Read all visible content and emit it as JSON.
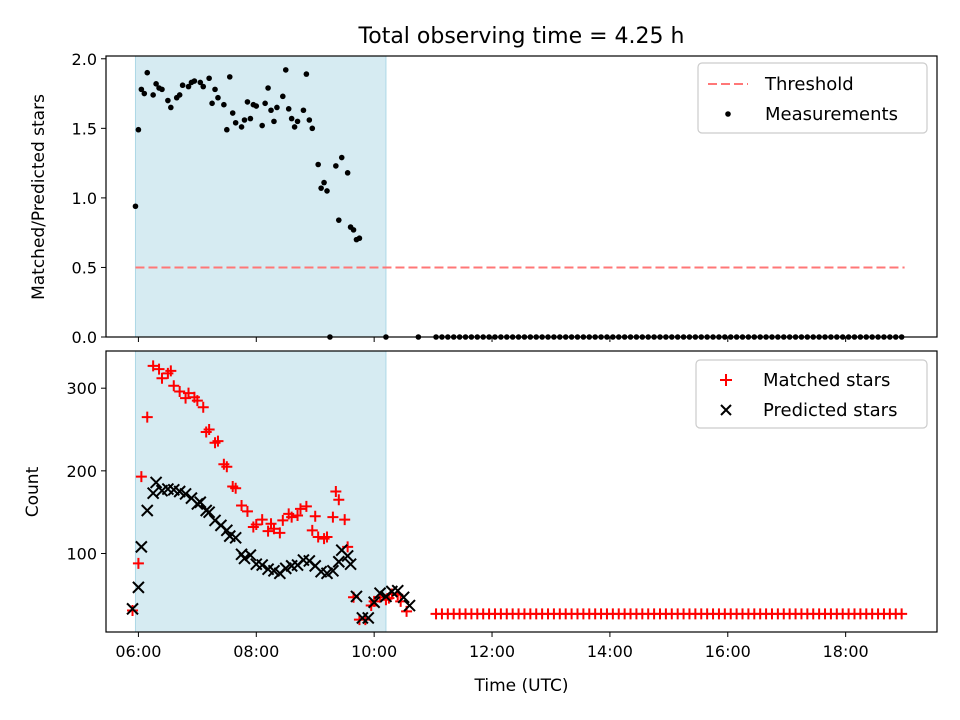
{
  "title": "Total observing time = 4.25 h",
  "chart_data": [
    {
      "type": "scatter",
      "ylabel": "Matched/Predicted stars",
      "ylim": [
        0,
        2.02
      ],
      "yticks": [
        0.0,
        0.5,
        1.0,
        1.5,
        2.0
      ],
      "ytick_labels": [
        "0.0",
        "0.5",
        "1.0",
        "1.5",
        "2.0"
      ],
      "xlim": [
        "05:27",
        "19:33"
      ],
      "legend_position": "top-right",
      "observing_window": [
        "05:57",
        "10:12"
      ],
      "colors": {
        "threshold": "#ff7777",
        "measurements": "#000000",
        "window": "#add8e6"
      },
      "threshold": {
        "name": "Threshold",
        "y": 0.5,
        "x_range": [
          "05:57",
          "19:00"
        ]
      },
      "series": [
        {
          "name": "Measurements",
          "points": [
            [
              "05:57",
              0.94
            ],
            [
              "06:00",
              1.49
            ],
            [
              "06:03",
              1.78
            ],
            [
              "06:06",
              1.75
            ],
            [
              "06:09",
              1.9
            ],
            [
              "06:15",
              1.74
            ],
            [
              "06:18",
              1.82
            ],
            [
              "06:21",
              1.79
            ],
            [
              "06:24",
              1.78
            ],
            [
              "06:30",
              1.7
            ],
            [
              "06:33",
              1.65
            ],
            [
              "06:39",
              1.72
            ],
            [
              "06:42",
              1.74
            ],
            [
              "06:45",
              1.81
            ],
            [
              "06:51",
              1.8
            ],
            [
              "06:54",
              1.83
            ],
            [
              "06:57",
              1.84
            ],
            [
              "07:03",
              1.83
            ],
            [
              "07:06",
              1.8
            ],
            [
              "07:12",
              1.86
            ],
            [
              "07:15",
              1.68
            ],
            [
              "07:18",
              1.78
            ],
            [
              "07:21",
              1.72
            ],
            [
              "07:27",
              1.67
            ],
            [
              "07:30",
              1.49
            ],
            [
              "07:33",
              1.87
            ],
            [
              "07:36",
              1.61
            ],
            [
              "07:39",
              1.54
            ],
            [
              "07:45",
              1.51
            ],
            [
              "07:48",
              1.56
            ],
            [
              "07:51",
              1.69
            ],
            [
              "07:54",
              1.57
            ],
            [
              "07:57",
              1.67
            ],
            [
              "08:00",
              1.66
            ],
            [
              "08:06",
              1.52
            ],
            [
              "08:09",
              1.68
            ],
            [
              "08:12",
              1.79
            ],
            [
              "08:15",
              1.63
            ],
            [
              "08:18",
              1.55
            ],
            [
              "08:21",
              1.65
            ],
            [
              "08:27",
              1.73
            ],
            [
              "08:30",
              1.92
            ],
            [
              "08:33",
              1.64
            ],
            [
              "08:36",
              1.57
            ],
            [
              "08:39",
              1.51
            ],
            [
              "08:42",
              1.55
            ],
            [
              "08:48",
              1.63
            ],
            [
              "08:51",
              1.89
            ],
            [
              "08:54",
              1.56
            ],
            [
              "08:57",
              1.5
            ],
            [
              "09:03",
              1.24
            ],
            [
              "09:06",
              1.07
            ],
            [
              "09:09",
              1.11
            ],
            [
              "09:12",
              1.05
            ],
            [
              "09:15",
              0.0
            ],
            [
              "09:21",
              1.23
            ],
            [
              "09:24",
              0.84
            ],
            [
              "09:27",
              1.29
            ],
            [
              "09:33",
              1.18
            ],
            [
              "09:36",
              0.79
            ],
            [
              "09:39",
              0.77
            ],
            [
              "09:42",
              0.7
            ],
            [
              "09:45",
              0.71
            ],
            [
              "10:12",
              0.0
            ],
            [
              "10:45",
              0.0
            ]
          ]
        }
      ]
    },
    {
      "type": "scatter",
      "xlabel": "Time (UTC)",
      "ylabel": "Count",
      "ylim": [
        5,
        345
      ],
      "yticks": [
        100,
        200,
        300
      ],
      "ytick_labels": [
        "100",
        "200",
        "300"
      ],
      "xlim": [
        "05:27",
        "19:33"
      ],
      "xticks": [
        "06:00",
        "08:00",
        "10:00",
        "12:00",
        "14:00",
        "16:00",
        "18:00"
      ],
      "xtick_labels": [
        "06:00",
        "08:00",
        "10:00",
        "12:00",
        "14:00",
        "16:00",
        "18:00"
      ],
      "legend_position": "top-right",
      "observing_window": [
        "05:57",
        "10:12"
      ],
      "colors": {
        "matched": "#ff0000",
        "predicted": "#000000",
        "window": "#add8e6"
      },
      "tail": {
        "from": "11:03",
        "to": "19:00",
        "step_minutes": 6,
        "matched": 27
      },
      "series": [
        {
          "name": "Matched stars",
          "points": [
            [
              "05:54",
              31
            ],
            [
              "06:00",
              88
            ],
            [
              "06:03",
              193
            ],
            [
              "06:09",
              265
            ],
            [
              "06:15",
              327
            ],
            [
              "06:21",
              323
            ],
            [
              "06:24",
              312
            ],
            [
              "06:30",
              318
            ],
            [
              "06:33",
              321
            ],
            [
              "06:36",
              303
            ],
            [
              "06:42",
              296
            ],
            [
              "06:48",
              288
            ],
            [
              "06:51",
              294
            ],
            [
              "06:57",
              289
            ],
            [
              "07:00",
              285
            ],
            [
              "07:06",
              277
            ],
            [
              "07:09",
              247
            ],
            [
              "07:12",
              250
            ],
            [
              "07:18",
              234
            ],
            [
              "07:21",
              236
            ],
            [
              "07:27",
              208
            ],
            [
              "07:30",
              205
            ],
            [
              "07:36",
              181
            ],
            [
              "07:39",
              179
            ],
            [
              "07:45",
              158
            ],
            [
              "07:51",
              151
            ],
            [
              "07:57",
              132
            ],
            [
              "08:00",
              135
            ],
            [
              "08:06",
              141
            ],
            [
              "08:12",
              127
            ],
            [
              "08:15",
              136
            ],
            [
              "08:18",
              130
            ],
            [
              "08:24",
              125
            ],
            [
              "08:27",
              140
            ],
            [
              "08:33",
              148
            ],
            [
              "08:36",
              144
            ],
            [
              "08:42",
              146
            ],
            [
              "08:45",
              154
            ],
            [
              "08:51",
              157
            ],
            [
              "08:57",
              128
            ],
            [
              "09:00",
              145
            ],
            [
              "09:03",
              120
            ],
            [
              "09:09",
              118
            ],
            [
              "09:12",
              120
            ],
            [
              "09:18",
              144
            ],
            [
              "09:21",
              175
            ],
            [
              "09:24",
              165
            ],
            [
              "09:30",
              141
            ],
            [
              "09:33",
              108
            ],
            [
              "09:39",
              47
            ],
            [
              "09:45",
              20
            ],
            [
              "09:51",
              20
            ],
            [
              "09:57",
              37
            ],
            [
              "10:00",
              42
            ],
            [
              "10:06",
              47
            ],
            [
              "10:12",
              44
            ],
            [
              "10:15",
              46
            ],
            [
              "10:18",
              51
            ],
            [
              "10:24",
              50
            ],
            [
              "10:27",
              42
            ],
            [
              "10:33",
              30
            ]
          ]
        },
        {
          "name": "Predicted stars",
          "points": [
            [
              "05:54",
              33
            ],
            [
              "06:00",
              59
            ],
            [
              "06:03",
              108
            ],
            [
              "06:09",
              152
            ],
            [
              "06:15",
              173
            ],
            [
              "06:18",
              186
            ],
            [
              "06:24",
              176
            ],
            [
              "06:30",
              178
            ],
            [
              "06:36",
              177
            ],
            [
              "06:42",
              175
            ],
            [
              "06:48",
              172
            ],
            [
              "06:54",
              167
            ],
            [
              "07:00",
              160
            ],
            [
              "07:03",
              162
            ],
            [
              "07:09",
              152
            ],
            [
              "07:12",
              150
            ],
            [
              "07:18",
              140
            ],
            [
              "07:24",
              134
            ],
            [
              "07:30",
              128
            ],
            [
              "07:33",
              121
            ],
            [
              "07:39",
              119
            ],
            [
              "07:45",
              99
            ],
            [
              "07:48",
              94
            ],
            [
              "07:54",
              98
            ],
            [
              "08:00",
              87
            ],
            [
              "08:06",
              86
            ],
            [
              "08:12",
              81
            ],
            [
              "08:18",
              79
            ],
            [
              "08:24",
              76
            ],
            [
              "08:30",
              82
            ],
            [
              "08:36",
              85
            ],
            [
              "08:42",
              86
            ],
            [
              "08:48",
              92
            ],
            [
              "08:54",
              91
            ],
            [
              "09:00",
              85
            ],
            [
              "09:06",
              78
            ],
            [
              "09:12",
              76
            ],
            [
              "09:18",
              79
            ],
            [
              "09:24",
              90
            ],
            [
              "09:27",
              104
            ],
            [
              "09:33",
              97
            ],
            [
              "09:36",
              87
            ],
            [
              "09:42",
              48
            ],
            [
              "09:48",
              22
            ],
            [
              "09:54",
              22
            ],
            [
              "10:00",
              41
            ],
            [
              "10:06",
              52
            ],
            [
              "10:12",
              48
            ],
            [
              "10:18",
              54
            ],
            [
              "10:24",
              55
            ],
            [
              "10:30",
              47
            ],
            [
              "10:36",
              37
            ]
          ]
        }
      ]
    }
  ]
}
